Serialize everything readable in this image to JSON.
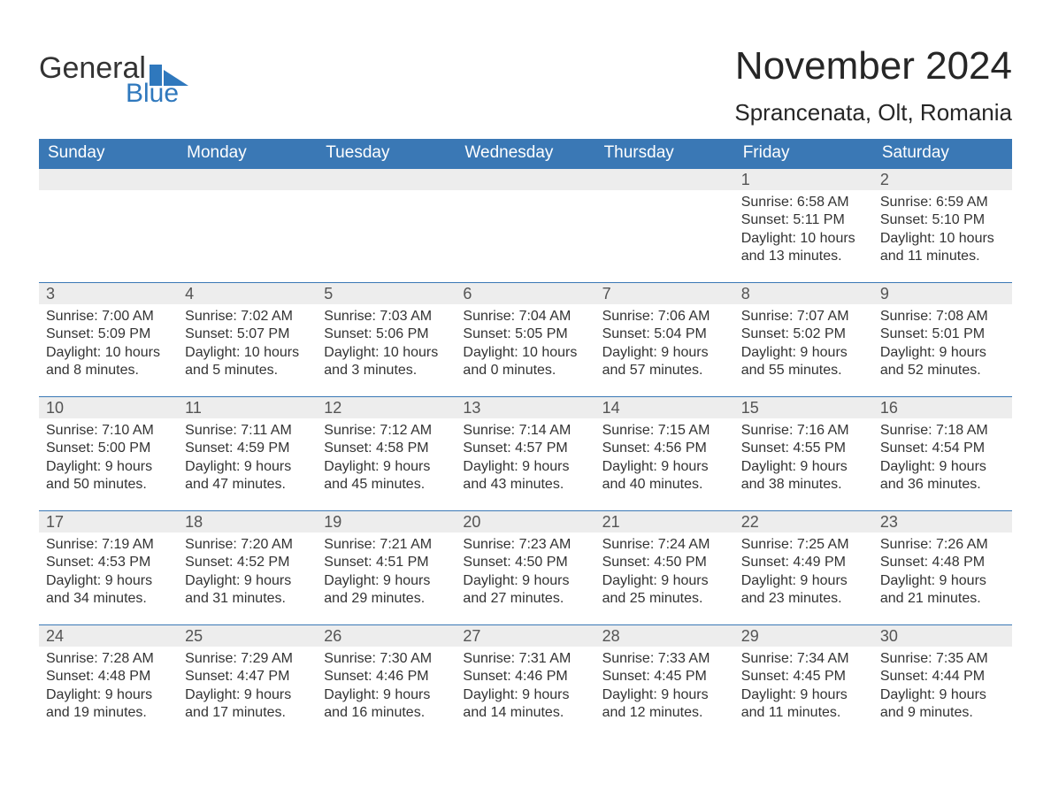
{
  "brand": {
    "general": "General",
    "blue": "Blue",
    "text_color": "#333333",
    "blue_color": "#2f78bd",
    "flag_color": "#2f78bd"
  },
  "title": {
    "month": "November 2024",
    "location": "Sprancenata, Olt, Romania",
    "month_fontsize": 44,
    "location_fontsize": 26
  },
  "style": {
    "header_bg": "#3a78b5",
    "header_text": "#ffffff",
    "daynum_bg": "#ededed",
    "daynum_color": "#545454",
    "details_color": "#333333",
    "row_border_color": "#3a78b5",
    "background": "#ffffff",
    "weekday_fontsize": 19,
    "daynum_fontsize": 18,
    "details_fontsize": 16
  },
  "calendar": {
    "type": "table",
    "columns": [
      "Sunday",
      "Monday",
      "Tuesday",
      "Wednesday",
      "Thursday",
      "Friday",
      "Saturday"
    ],
    "weeks": [
      [
        null,
        null,
        null,
        null,
        null,
        {
          "day": "1",
          "sunrise": "Sunrise: 6:58 AM",
          "sunset": "Sunset: 5:11 PM",
          "daylight": "Daylight: 10 hours and 13 minutes."
        },
        {
          "day": "2",
          "sunrise": "Sunrise: 6:59 AM",
          "sunset": "Sunset: 5:10 PM",
          "daylight": "Daylight: 10 hours and 11 minutes."
        }
      ],
      [
        {
          "day": "3",
          "sunrise": "Sunrise: 7:00 AM",
          "sunset": "Sunset: 5:09 PM",
          "daylight": "Daylight: 10 hours and 8 minutes."
        },
        {
          "day": "4",
          "sunrise": "Sunrise: 7:02 AM",
          "sunset": "Sunset: 5:07 PM",
          "daylight": "Daylight: 10 hours and 5 minutes."
        },
        {
          "day": "5",
          "sunrise": "Sunrise: 7:03 AM",
          "sunset": "Sunset: 5:06 PM",
          "daylight": "Daylight: 10 hours and 3 minutes."
        },
        {
          "day": "6",
          "sunrise": "Sunrise: 7:04 AM",
          "sunset": "Sunset: 5:05 PM",
          "daylight": "Daylight: 10 hours and 0 minutes."
        },
        {
          "day": "7",
          "sunrise": "Sunrise: 7:06 AM",
          "sunset": "Sunset: 5:04 PM",
          "daylight": "Daylight: 9 hours and 57 minutes."
        },
        {
          "day": "8",
          "sunrise": "Sunrise: 7:07 AM",
          "sunset": "Sunset: 5:02 PM",
          "daylight": "Daylight: 9 hours and 55 minutes."
        },
        {
          "day": "9",
          "sunrise": "Sunrise: 7:08 AM",
          "sunset": "Sunset: 5:01 PM",
          "daylight": "Daylight: 9 hours and 52 minutes."
        }
      ],
      [
        {
          "day": "10",
          "sunrise": "Sunrise: 7:10 AM",
          "sunset": "Sunset: 5:00 PM",
          "daylight": "Daylight: 9 hours and 50 minutes."
        },
        {
          "day": "11",
          "sunrise": "Sunrise: 7:11 AM",
          "sunset": "Sunset: 4:59 PM",
          "daylight": "Daylight: 9 hours and 47 minutes."
        },
        {
          "day": "12",
          "sunrise": "Sunrise: 7:12 AM",
          "sunset": "Sunset: 4:58 PM",
          "daylight": "Daylight: 9 hours and 45 minutes."
        },
        {
          "day": "13",
          "sunrise": "Sunrise: 7:14 AM",
          "sunset": "Sunset: 4:57 PM",
          "daylight": "Daylight: 9 hours and 43 minutes."
        },
        {
          "day": "14",
          "sunrise": "Sunrise: 7:15 AM",
          "sunset": "Sunset: 4:56 PM",
          "daylight": "Daylight: 9 hours and 40 minutes."
        },
        {
          "day": "15",
          "sunrise": "Sunrise: 7:16 AM",
          "sunset": "Sunset: 4:55 PM",
          "daylight": "Daylight: 9 hours and 38 minutes."
        },
        {
          "day": "16",
          "sunrise": "Sunrise: 7:18 AM",
          "sunset": "Sunset: 4:54 PM",
          "daylight": "Daylight: 9 hours and 36 minutes."
        }
      ],
      [
        {
          "day": "17",
          "sunrise": "Sunrise: 7:19 AM",
          "sunset": "Sunset: 4:53 PM",
          "daylight": "Daylight: 9 hours and 34 minutes."
        },
        {
          "day": "18",
          "sunrise": "Sunrise: 7:20 AM",
          "sunset": "Sunset: 4:52 PM",
          "daylight": "Daylight: 9 hours and 31 minutes."
        },
        {
          "day": "19",
          "sunrise": "Sunrise: 7:21 AM",
          "sunset": "Sunset: 4:51 PM",
          "daylight": "Daylight: 9 hours and 29 minutes."
        },
        {
          "day": "20",
          "sunrise": "Sunrise: 7:23 AM",
          "sunset": "Sunset: 4:50 PM",
          "daylight": "Daylight: 9 hours and 27 minutes."
        },
        {
          "day": "21",
          "sunrise": "Sunrise: 7:24 AM",
          "sunset": "Sunset: 4:50 PM",
          "daylight": "Daylight: 9 hours and 25 minutes."
        },
        {
          "day": "22",
          "sunrise": "Sunrise: 7:25 AM",
          "sunset": "Sunset: 4:49 PM",
          "daylight": "Daylight: 9 hours and 23 minutes."
        },
        {
          "day": "23",
          "sunrise": "Sunrise: 7:26 AM",
          "sunset": "Sunset: 4:48 PM",
          "daylight": "Daylight: 9 hours and 21 minutes."
        }
      ],
      [
        {
          "day": "24",
          "sunrise": "Sunrise: 7:28 AM",
          "sunset": "Sunset: 4:48 PM",
          "daylight": "Daylight: 9 hours and 19 minutes."
        },
        {
          "day": "25",
          "sunrise": "Sunrise: 7:29 AM",
          "sunset": "Sunset: 4:47 PM",
          "daylight": "Daylight: 9 hours and 17 minutes."
        },
        {
          "day": "26",
          "sunrise": "Sunrise: 7:30 AM",
          "sunset": "Sunset: 4:46 PM",
          "daylight": "Daylight: 9 hours and 16 minutes."
        },
        {
          "day": "27",
          "sunrise": "Sunrise: 7:31 AM",
          "sunset": "Sunset: 4:46 PM",
          "daylight": "Daylight: 9 hours and 14 minutes."
        },
        {
          "day": "28",
          "sunrise": "Sunrise: 7:33 AM",
          "sunset": "Sunset: 4:45 PM",
          "daylight": "Daylight: 9 hours and 12 minutes."
        },
        {
          "day": "29",
          "sunrise": "Sunrise: 7:34 AM",
          "sunset": "Sunset: 4:45 PM",
          "daylight": "Daylight: 9 hours and 11 minutes."
        },
        {
          "day": "30",
          "sunrise": "Sunrise: 7:35 AM",
          "sunset": "Sunset: 4:44 PM",
          "daylight": "Daylight: 9 hours and 9 minutes."
        }
      ]
    ]
  }
}
